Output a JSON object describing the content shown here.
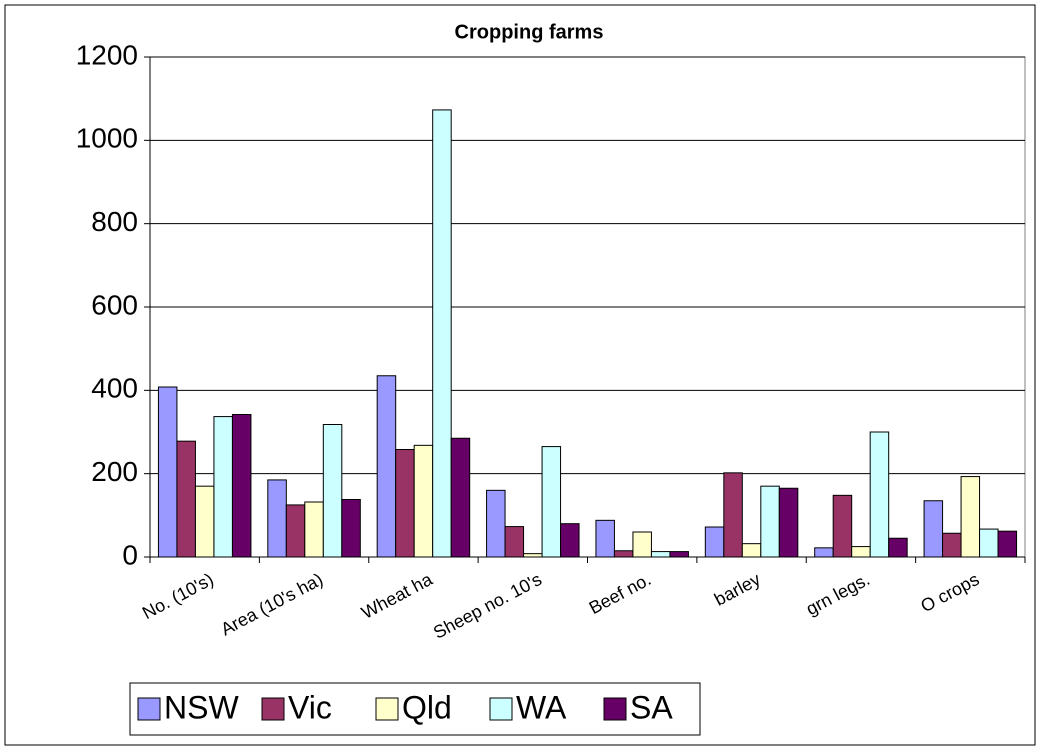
{
  "chart_data": {
    "type": "bar",
    "title": "Cropping farms",
    "categories": [
      "No. (10's)",
      "Area (10's ha)",
      "Wheat ha",
      "Sheep no. 10's",
      "Beef no.",
      "barley",
      "grn legs.",
      "O crops"
    ],
    "series": [
      {
        "name": "NSW",
        "color": "#9999ff",
        "values": [
          408,
          185,
          435,
          160,
          88,
          72,
          22,
          135
        ]
      },
      {
        "name": "Vic",
        "color": "#993366",
        "values": [
          278,
          125,
          258,
          73,
          15,
          202,
          148,
          57
        ]
      },
      {
        "name": "Qld",
        "color": "#ffffcc",
        "values": [
          170,
          132,
          268,
          8,
          60,
          32,
          25,
          193
        ]
      },
      {
        "name": "WA",
        "color": "#ccffff",
        "values": [
          337,
          318,
          1073,
          265,
          13,
          170,
          300,
          67
        ]
      },
      {
        "name": "SA",
        "color": "#660066",
        "values": [
          342,
          138,
          285,
          80,
          13,
          165,
          45,
          62
        ]
      }
    ],
    "ylim": [
      0,
      1200
    ],
    "yticks": [
      0,
      200,
      400,
      600,
      800,
      1000,
      1200
    ],
    "grid": true,
    "legend": "bottom"
  }
}
